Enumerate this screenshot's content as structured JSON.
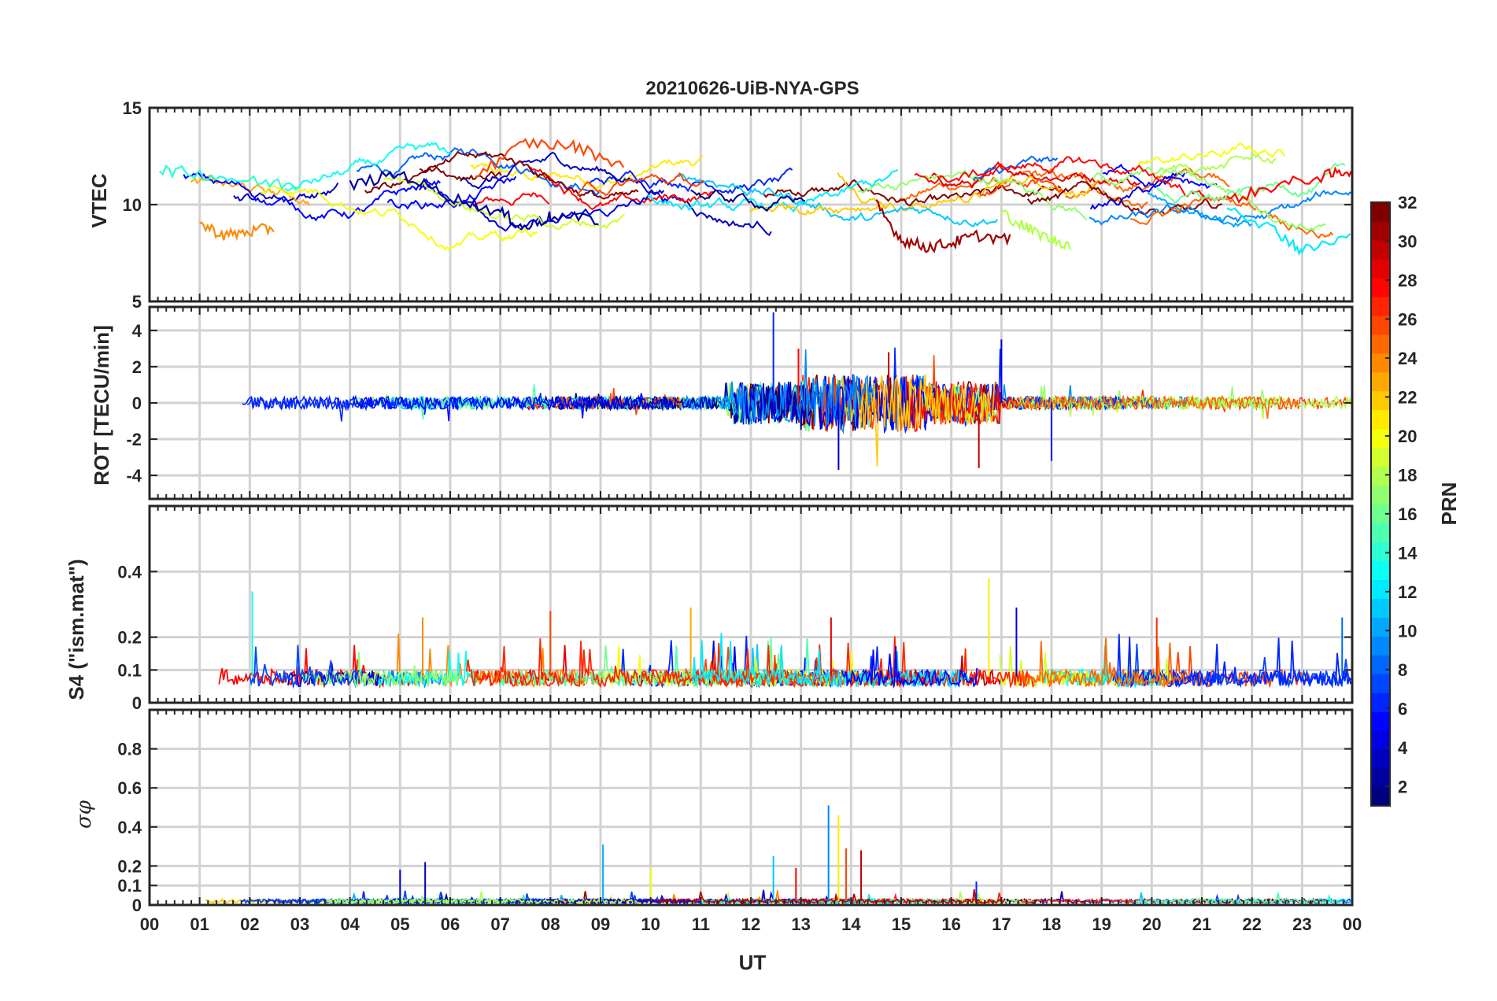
{
  "figure": {
    "title": "20210626-UiB-NYA-GPS",
    "xlabel": "UT"
  },
  "colorbar": {
    "label": "PRN",
    "range": [
      1,
      32
    ],
    "ticks": [
      "2",
      "4",
      "6",
      "8",
      "10",
      "12",
      "14",
      "16",
      "18",
      "20",
      "22",
      "24",
      "26",
      "28",
      "30",
      "32"
    ]
  },
  "chart_data": [
    {
      "type": "line",
      "panel": "VTEC",
      "ylabel": "VTEC",
      "xlim": [
        0,
        24
      ],
      "ylim": [
        5,
        15
      ],
      "xticks": [
        "00",
        "01",
        "02",
        "03",
        "04",
        "05",
        "06",
        "07",
        "08",
        "09",
        "10",
        "11",
        "12",
        "13",
        "14",
        "15",
        "16",
        "17",
        "18",
        "19",
        "20",
        "21",
        "22",
        "23",
        "00"
      ],
      "yticks": [
        5,
        10,
        15
      ],
      "ytick_labels": [
        "5",
        "10",
        "15"
      ],
      "grid": true,
      "series": [
        {
          "name": "PRN 31",
          "x": [
            14.5,
            15.0,
            15.5,
            16.0,
            16.5,
            17.2
          ],
          "y": [
            10.0,
            8.2,
            7.8,
            8.0,
            8.4,
            8.2
          ]
        },
        {
          "name": "PRN 2",
          "x": [
            4.0,
            5.0,
            6.0,
            7.0,
            7.5,
            8.0,
            9.0
          ],
          "y": [
            11.0,
            11.6,
            10.4,
            9.6,
            8.8,
            9.4,
            9.2
          ]
        },
        {
          "name": "PRN 24",
          "x": [
            1.0,
            1.5,
            2.0,
            2.5
          ],
          "y": [
            9.0,
            8.4,
            8.6,
            8.8
          ]
        },
        {
          "name": "PRN 26",
          "x": [
            6.5,
            7.5,
            8.5,
            9.5
          ],
          "y": [
            11.5,
            13.2,
            13.0,
            12.0
          ]
        },
        {
          "name": "PRN 28",
          "x": [
            21.5,
            22.5,
            23.5,
            24.0
          ],
          "y": [
            10.2,
            11.0,
            11.5,
            11.8
          ]
        },
        {
          "name": "PRN 14",
          "x": [
            0.2,
            1.0,
            2.0,
            3.0
          ],
          "y": [
            11.8,
            11.6,
            11.2,
            11.0
          ]
        },
        {
          "name": "PRN 12",
          "x": [
            21.5,
            22.5,
            23.0,
            24.0
          ],
          "y": [
            10.0,
            8.6,
            7.6,
            8.4
          ]
        },
        {
          "name": "PRN 18",
          "x": [
            17.0,
            17.5,
            18.0,
            18.4
          ],
          "y": [
            9.6,
            8.8,
            8.2,
            7.9
          ]
        }
      ]
    },
    {
      "type": "line",
      "panel": "ROT",
      "ylabel": "ROT [TECU/min]",
      "xlim": [
        0,
        24
      ],
      "ylim": [
        -5.3,
        5.3
      ],
      "yticks": [
        -4,
        -2,
        0,
        2,
        4
      ],
      "ytick_labels": [
        "-4",
        "-2",
        "0",
        "2",
        "4"
      ],
      "grid": true,
      "description_values": {
        "max": 5.0,
        "min": -3.7
      }
    },
    {
      "type": "line",
      "panel": "S4",
      "ylabel": "S4 (\"ism.mat\")",
      "xlim": [
        0,
        24
      ],
      "ylim": [
        0,
        0.6
      ],
      "yticks": [
        0,
        0.1,
        0.2,
        0.4
      ],
      "ytick_labels": [
        "0",
        "0.1",
        "0.2",
        "0.4"
      ],
      "grid": true,
      "description_values": {
        "max": 0.38
      }
    },
    {
      "type": "line",
      "panel": "sigma_phi",
      "ylabel": "σφ",
      "xlim": [
        0,
        24
      ],
      "ylim": [
        0,
        1
      ],
      "yticks": [
        0,
        0.1,
        0.2,
        0.4,
        0.6,
        0.8
      ],
      "ytick_labels": [
        "0",
        "0.1",
        "0.2",
        "0.4",
        "0.6",
        "0.8"
      ],
      "grid": true,
      "description_values": {
        "max": 0.51
      }
    }
  ]
}
